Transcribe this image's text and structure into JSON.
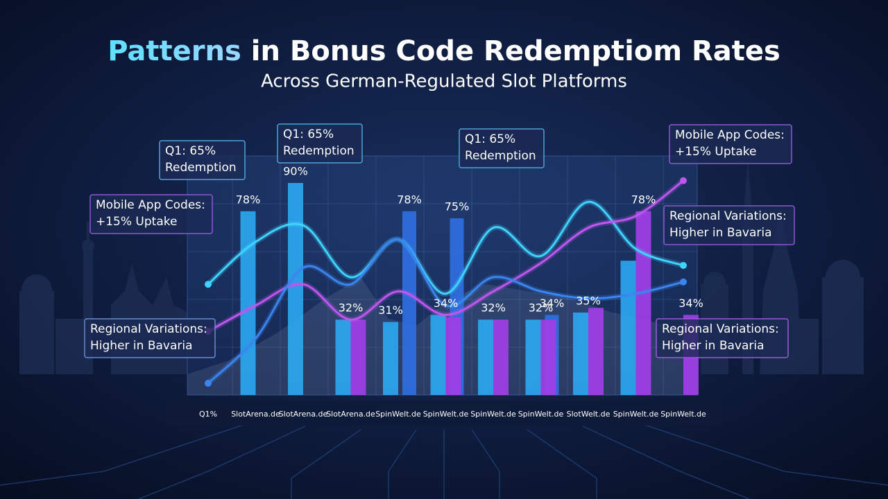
{
  "chart_data": {
    "type": "bar",
    "title": "Patterns in Bonus Code Redemptiom Rates",
    "subtitle": "Across German-Regulated Slot Platforms",
    "categories": [
      "Q1%",
      "SlotArena.de",
      "SlotArena.de",
      "SlotArena.de",
      "SpinWelt.de",
      "SpinWelt.de",
      "SpinWelt.de",
      "SpinWelt.de",
      "SlotWelt.de",
      "SpinWelt.de",
      "SpinWelt.de"
    ],
    "ylim": [
      0,
      100
    ],
    "series": [
      {
        "color": "#2ba6ef",
        "values": [
          null,
          78,
          90,
          32,
          31,
          34,
          32,
          32,
          35,
          57,
          null
        ],
        "value_labels": [
          null,
          "78%",
          "90%",
          "32%",
          "31%",
          "34%",
          "32%",
          "32%",
          "35%",
          null,
          null
        ]
      },
      {
        "color": "#2f6fe0",
        "values": [
          null,
          null,
          null,
          null,
          78,
          75,
          null,
          34,
          null,
          null,
          null
        ],
        "value_labels": [
          null,
          null,
          null,
          null,
          "78%",
          "75%",
          null,
          "34%",
          null,
          null,
          null
        ]
      },
      {
        "color": "#a23ee8",
        "values": [
          null,
          null,
          null,
          32,
          null,
          33,
          32,
          32,
          37,
          78,
          34
        ],
        "value_labels": [
          null,
          null,
          null,
          null,
          null,
          null,
          null,
          null,
          null,
          "78%",
          "34%"
        ]
      }
    ],
    "lines": [
      {
        "color": "#3fd3ff",
        "values": [
          47,
          65,
          72,
          50,
          66,
          43,
          71,
          59,
          82,
          62,
          55
        ]
      },
      {
        "color": "#c056f0",
        "values": [
          27,
          38,
          47,
          32,
          44,
          34,
          44,
          56,
          71,
          76,
          91
        ]
      },
      {
        "color": "#3a86f0",
        "values": [
          5,
          24,
          54,
          47,
          66,
          38,
          50,
          44,
          41,
          43,
          48
        ]
      }
    ],
    "annotations": [
      {
        "lines": [
          "Q1: 65%",
          "Redemption"
        ]
      },
      {
        "lines": [
          "Q1: 65%",
          "Redemption"
        ]
      },
      {
        "lines": [
          "Q1: 65%",
          "Redemption"
        ]
      },
      {
        "lines": [
          "Mobile App Codes:",
          "+15% Uptake"
        ]
      },
      {
        "lines": [
          "Mobile App Codes:",
          "+15% Uptake"
        ]
      },
      {
        "lines": [
          "Regional Variations:",
          "Higher in Bavaria"
        ]
      },
      {
        "lines": [
          "Regional Variations:",
          "Higher in Bavaria"
        ]
      },
      {
        "lines": [
          "Regional Variations:",
          "Higher in Bavaria"
        ]
      }
    ]
  }
}
